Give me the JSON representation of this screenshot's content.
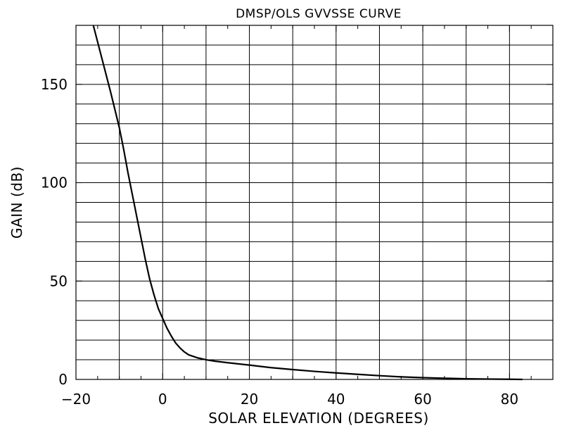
{
  "chart_data": {
    "type": "line",
    "title": "DMSP/OLS GVVSSE CURVE",
    "xlabel": "SOLAR ELEVATION (DEGREES)",
    "ylabel": "GAIN (dB)",
    "xlim": [
      -20,
      90
    ],
    "ylim": [
      0,
      180
    ],
    "xticks": [
      -20,
      0,
      20,
      40,
      60,
      80
    ],
    "xtick_labels": [
      "−20",
      "0",
      "20",
      "40",
      "60",
      "80"
    ],
    "yticks": [
      0,
      50,
      100,
      150
    ],
    "ytick_labels": [
      "0",
      "50",
      "100",
      "150"
    ],
    "grid": true,
    "grid_x_step": 10,
    "grid_y_step": 10,
    "line_color": "#000000",
    "series": [
      {
        "x": [
          -16,
          -14,
          -12,
          -10,
          -9,
          -8,
          -7,
          -6,
          -5,
          -4,
          -3,
          -2,
          -1,
          0,
          1,
          2,
          3,
          4,
          5,
          6,
          8,
          10,
          12,
          15,
          20,
          25,
          30,
          35,
          40,
          45,
          50,
          55,
          60,
          65,
          70,
          75,
          80,
          83
        ],
        "y": [
          180,
          163,
          146,
          128,
          117,
          105,
          94,
          83,
          72,
          61,
          51,
          43,
          36,
          31,
          26,
          22,
          18.5,
          16,
          14,
          12.5,
          11,
          10,
          9.3,
          8.5,
          7.3,
          6,
          5,
          4.1,
          3.3,
          2.6,
          1.9,
          1.3,
          0.9,
          0.6,
          0.3,
          0.2,
          0.1,
          0
        ]
      }
    ]
  }
}
